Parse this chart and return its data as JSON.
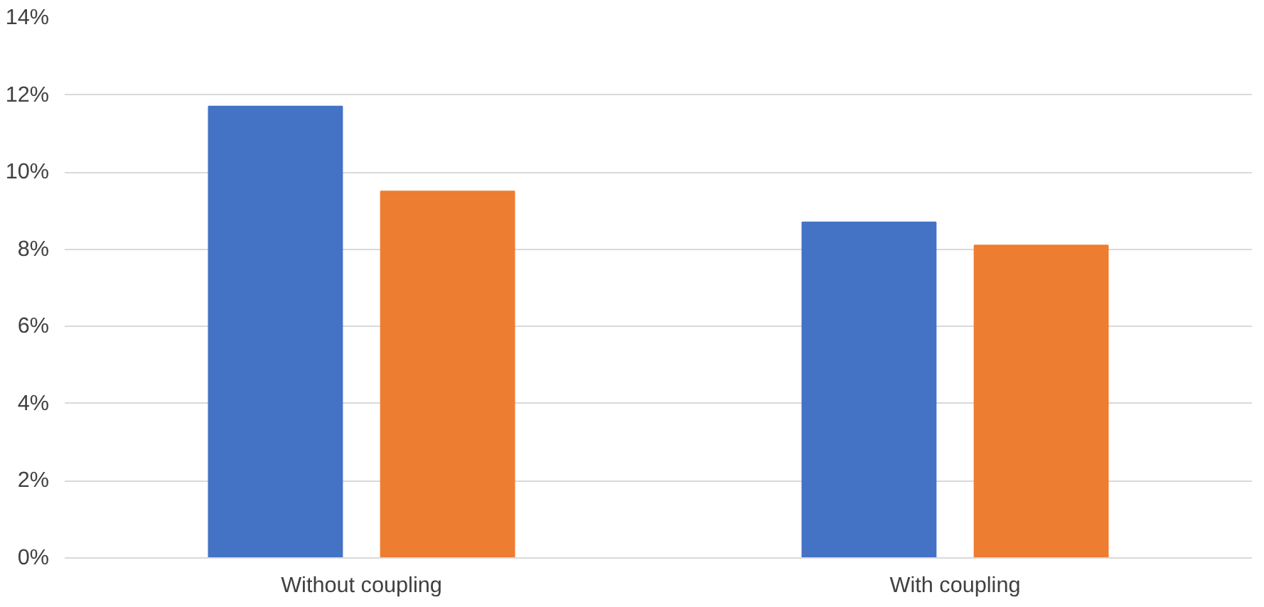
{
  "chart_data": {
    "type": "bar",
    "categories": [
      "Without coupling",
      "With coupling"
    ],
    "series": [
      {
        "color": "#4472c4",
        "values": [
          11.7,
          8.7
        ]
      },
      {
        "color": "#ed7d31",
        "values": [
          9.5,
          8.1
        ]
      }
    ],
    "ylim": [
      0,
      14
    ],
    "yticks": [
      {
        "value": 0,
        "label": "0%"
      },
      {
        "value": 2,
        "label": "2%"
      },
      {
        "value": 4,
        "label": "4%"
      },
      {
        "value": 6,
        "label": "6%"
      },
      {
        "value": 8,
        "label": "8%"
      },
      {
        "value": 10,
        "label": "10%"
      },
      {
        "value": 12,
        "label": "12%"
      },
      {
        "value": 14,
        "label": "14%"
      }
    ],
    "grid": "y"
  }
}
